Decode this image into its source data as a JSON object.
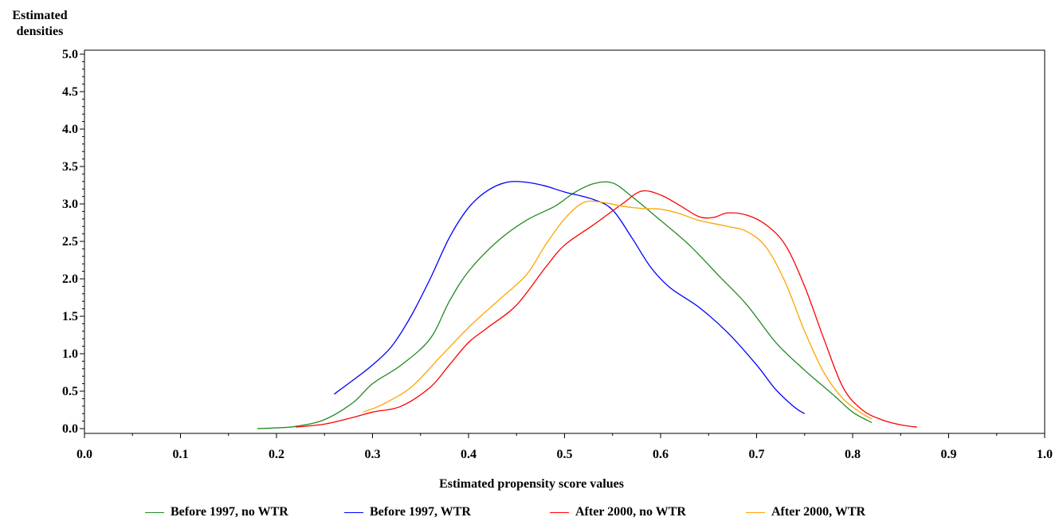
{
  "chart_data": {
    "type": "line",
    "ylabel_lines": [
      "Estimated",
      "densities"
    ],
    "xlabel": "Estimated propensity score values",
    "xlim": [
      0.0,
      1.0
    ],
    "ylim": [
      0.0,
      5.0
    ],
    "x_ticks": [
      "0.0",
      "0.1",
      "0.2",
      "0.3",
      "0.4",
      "0.5",
      "0.6",
      "0.7",
      "0.8",
      "0.9",
      "1.0"
    ],
    "y_ticks": [
      "0.0",
      "0.5",
      "1.0",
      "1.5",
      "2.0",
      "2.5",
      "3.0",
      "3.5",
      "4.0",
      "4.5",
      "5.0"
    ],
    "legend_position": "bottom",
    "series": [
      {
        "name": "Before 1997, no WTR",
        "color": "#228B22",
        "points": [
          [
            0.18,
            0.0
          ],
          [
            0.2,
            0.01
          ],
          [
            0.22,
            0.03
          ],
          [
            0.25,
            0.12
          ],
          [
            0.28,
            0.35
          ],
          [
            0.3,
            0.6
          ],
          [
            0.33,
            0.85
          ],
          [
            0.36,
            1.2
          ],
          [
            0.38,
            1.7
          ],
          [
            0.4,
            2.1
          ],
          [
            0.43,
            2.5
          ],
          [
            0.46,
            2.78
          ],
          [
            0.49,
            2.97
          ],
          [
            0.51,
            3.15
          ],
          [
            0.53,
            3.27
          ],
          [
            0.55,
            3.28
          ],
          [
            0.57,
            3.1
          ],
          [
            0.6,
            2.78
          ],
          [
            0.63,
            2.45
          ],
          [
            0.66,
            2.05
          ],
          [
            0.69,
            1.65
          ],
          [
            0.72,
            1.15
          ],
          [
            0.75,
            0.78
          ],
          [
            0.78,
            0.45
          ],
          [
            0.8,
            0.22
          ],
          [
            0.82,
            0.08
          ]
        ]
      },
      {
        "name": "Before 1997, WTR",
        "color": "#0000FF",
        "points": [
          [
            0.26,
            0.46
          ],
          [
            0.28,
            0.65
          ],
          [
            0.3,
            0.85
          ],
          [
            0.32,
            1.1
          ],
          [
            0.34,
            1.5
          ],
          [
            0.36,
            2.0
          ],
          [
            0.38,
            2.55
          ],
          [
            0.4,
            2.95
          ],
          [
            0.42,
            3.18
          ],
          [
            0.44,
            3.29
          ],
          [
            0.46,
            3.29
          ],
          [
            0.48,
            3.24
          ],
          [
            0.5,
            3.16
          ],
          [
            0.53,
            3.06
          ],
          [
            0.55,
            2.92
          ],
          [
            0.57,
            2.55
          ],
          [
            0.59,
            2.15
          ],
          [
            0.61,
            1.88
          ],
          [
            0.64,
            1.62
          ],
          [
            0.67,
            1.28
          ],
          [
            0.7,
            0.85
          ],
          [
            0.72,
            0.52
          ],
          [
            0.74,
            0.28
          ],
          [
            0.75,
            0.2
          ]
        ]
      },
      {
        "name": "After 2000, no WTR",
        "color": "#FF0000",
        "points": [
          [
            0.22,
            0.02
          ],
          [
            0.25,
            0.06
          ],
          [
            0.28,
            0.15
          ],
          [
            0.3,
            0.22
          ],
          [
            0.33,
            0.3
          ],
          [
            0.36,
            0.55
          ],
          [
            0.38,
            0.85
          ],
          [
            0.4,
            1.15
          ],
          [
            0.42,
            1.35
          ],
          [
            0.45,
            1.65
          ],
          [
            0.48,
            2.15
          ],
          [
            0.5,
            2.45
          ],
          [
            0.53,
            2.72
          ],
          [
            0.56,
            3.0
          ],
          [
            0.58,
            3.17
          ],
          [
            0.6,
            3.12
          ],
          [
            0.62,
            2.98
          ],
          [
            0.64,
            2.83
          ],
          [
            0.655,
            2.82
          ],
          [
            0.67,
            2.88
          ],
          [
            0.69,
            2.85
          ],
          [
            0.71,
            2.72
          ],
          [
            0.73,
            2.45
          ],
          [
            0.75,
            1.9
          ],
          [
            0.77,
            1.2
          ],
          [
            0.79,
            0.55
          ],
          [
            0.81,
            0.25
          ],
          [
            0.83,
            0.12
          ],
          [
            0.85,
            0.05
          ],
          [
            0.867,
            0.02
          ]
        ]
      },
      {
        "name": "After 2000, WTR",
        "color": "#FFA500",
        "points": [
          [
            0.29,
            0.22
          ],
          [
            0.31,
            0.32
          ],
          [
            0.34,
            0.55
          ],
          [
            0.37,
            0.95
          ],
          [
            0.4,
            1.35
          ],
          [
            0.43,
            1.7
          ],
          [
            0.46,
            2.05
          ],
          [
            0.48,
            2.45
          ],
          [
            0.5,
            2.8
          ],
          [
            0.52,
            3.02
          ],
          [
            0.54,
            3.02
          ],
          [
            0.56,
            2.97
          ],
          [
            0.58,
            2.94
          ],
          [
            0.6,
            2.93
          ],
          [
            0.62,
            2.87
          ],
          [
            0.64,
            2.78
          ],
          [
            0.67,
            2.7
          ],
          [
            0.69,
            2.63
          ],
          [
            0.71,
            2.42
          ],
          [
            0.73,
            1.95
          ],
          [
            0.75,
            1.3
          ],
          [
            0.77,
            0.75
          ],
          [
            0.79,
            0.4
          ],
          [
            0.81,
            0.2
          ],
          [
            0.82,
            0.13
          ]
        ]
      }
    ]
  }
}
